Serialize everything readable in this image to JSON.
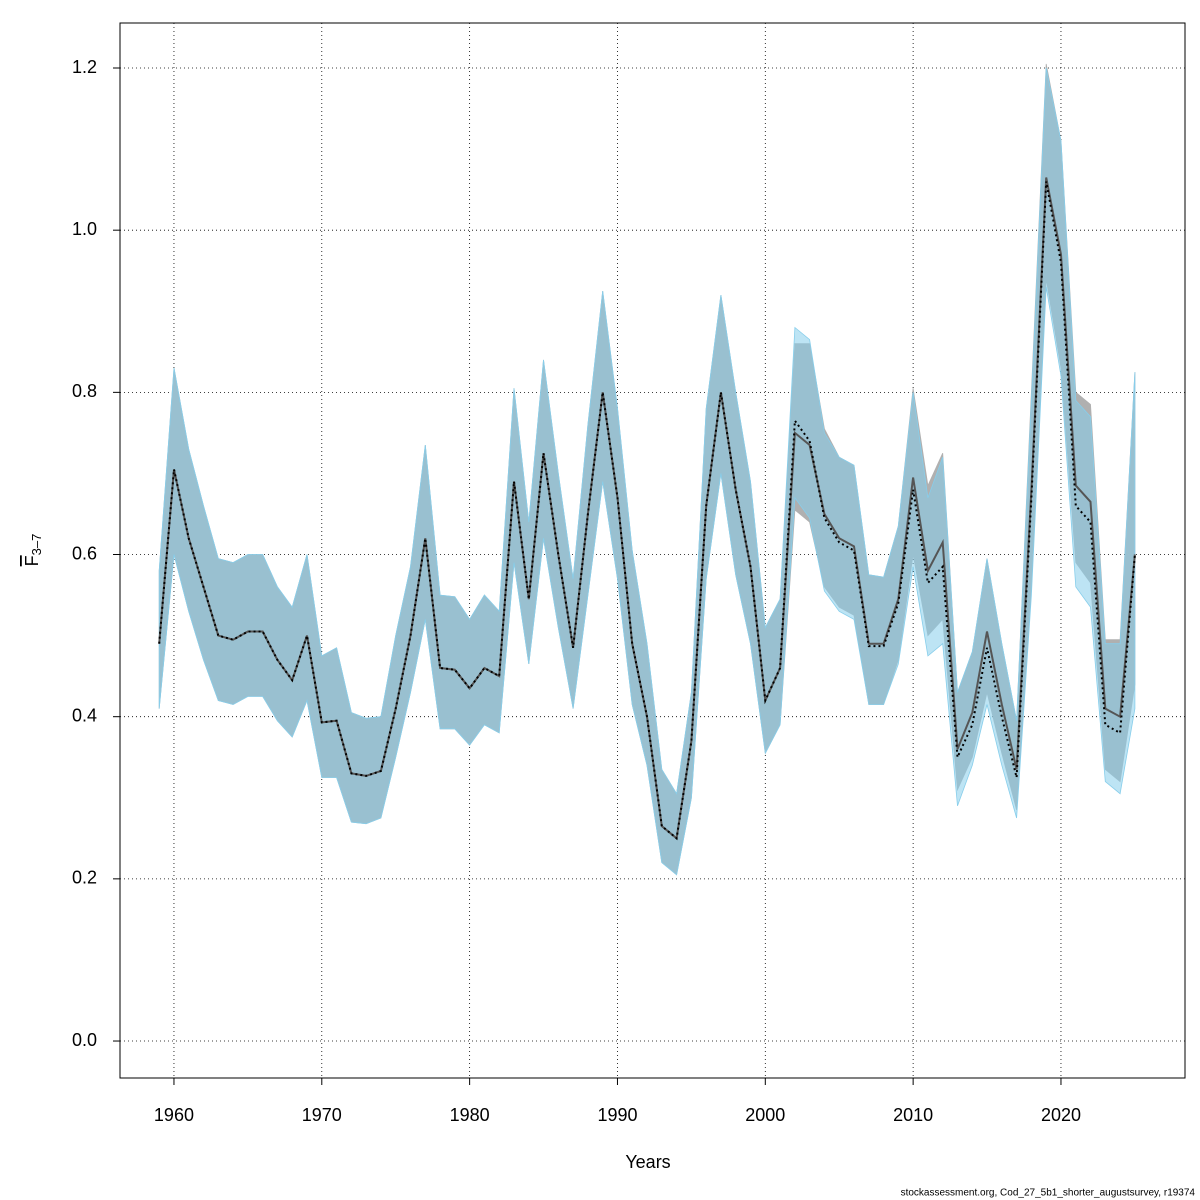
{
  "chart_data": {
    "type": "line",
    "xlabel": "Years",
    "ylabel": {
      "main": "F",
      "subscript": "3–7"
    },
    "footer": "stockassessment.org, Cod_27_5b1_shorter_augustsurvey, r19374",
    "x": [
      1959,
      1960,
      1961,
      1962,
      1963,
      1964,
      1965,
      1966,
      1967,
      1968,
      1969,
      1970,
      1971,
      1972,
      1973,
      1974,
      1975,
      1976,
      1977,
      1978,
      1979,
      1980,
      1981,
      1982,
      1983,
      1984,
      1985,
      1986,
      1987,
      1988,
      1989,
      1990,
      1991,
      1992,
      1993,
      1994,
      1995,
      1996,
      1997,
      1998,
      1999,
      2000,
      2001,
      2002,
      2003,
      2004,
      2005,
      2006,
      2007,
      2008,
      2009,
      2010,
      2011,
      2012,
      2013,
      2014,
      2015,
      2016,
      2017,
      2018,
      2019,
      2020,
      2021,
      2022,
      2023,
      2024,
      2025
    ],
    "series": [
      {
        "color": "#555555",
        "band_color": "#b0b0b0",
        "line_style": "solid",
        "values": [
          0.49,
          0.705,
          0.62,
          0.56,
          0.5,
          0.495,
          0.505,
          0.505,
          0.47,
          0.445,
          0.5,
          0.393,
          0.395,
          0.33,
          0.327,
          0.333,
          0.41,
          0.5,
          0.62,
          0.46,
          0.458,
          0.435,
          0.46,
          0.45,
          0.69,
          0.545,
          0.725,
          0.6,
          0.485,
          0.65,
          0.8,
          0.67,
          0.49,
          0.4,
          0.265,
          0.25,
          0.37,
          0.66,
          0.8,
          0.68,
          0.585,
          0.42,
          0.46,
          0.75,
          0.735,
          0.65,
          0.62,
          0.61,
          0.49,
          0.49,
          0.545,
          0.695,
          0.58,
          0.615,
          0.36,
          0.405,
          0.505,
          0.415,
          0.335,
          0.68,
          1.065,
          0.97,
          0.685,
          0.665,
          0.41,
          0.4,
          0.6
        ],
        "lower": [
          0.41,
          0.6,
          0.53,
          0.47,
          0.42,
          0.415,
          0.425,
          0.425,
          0.395,
          0.375,
          0.42,
          0.325,
          0.325,
          0.27,
          0.268,
          0.275,
          0.35,
          0.43,
          0.52,
          0.385,
          0.385,
          0.365,
          0.39,
          0.38,
          0.59,
          0.465,
          0.62,
          0.51,
          0.41,
          0.55,
          0.69,
          0.57,
          0.415,
          0.34,
          0.22,
          0.205,
          0.3,
          0.57,
          0.7,
          0.575,
          0.49,
          0.355,
          0.39,
          0.655,
          0.64,
          0.56,
          0.535,
          0.525,
          0.415,
          0.415,
          0.47,
          0.6,
          0.5,
          0.52,
          0.31,
          0.35,
          0.43,
          0.355,
          0.285,
          0.56,
          0.94,
          0.83,
          0.59,
          0.565,
          0.335,
          0.32,
          0.44
        ],
        "upper": [
          0.58,
          0.83,
          0.73,
          0.66,
          0.595,
          0.59,
          0.6,
          0.6,
          0.56,
          0.535,
          0.6,
          0.475,
          0.485,
          0.405,
          0.398,
          0.4,
          0.5,
          0.585,
          0.735,
          0.55,
          0.548,
          0.52,
          0.55,
          0.53,
          0.805,
          0.64,
          0.84,
          0.7,
          0.57,
          0.76,
          0.925,
          0.78,
          0.605,
          0.49,
          0.335,
          0.305,
          0.43,
          0.78,
          0.92,
          0.8,
          0.69,
          0.51,
          0.545,
          0.86,
          0.86,
          0.755,
          0.72,
          0.71,
          0.575,
          0.572,
          0.635,
          0.805,
          0.685,
          0.725,
          0.43,
          0.48,
          0.595,
          0.49,
          0.395,
          0.8,
          1.205,
          1.11,
          0.8,
          0.785,
          0.495,
          0.495,
          0.825
        ]
      },
      {
        "color": "#000000",
        "band_color": "#87ceeb",
        "line_style": "dotted",
        "values": [
          0.49,
          0.705,
          0.62,
          0.56,
          0.5,
          0.495,
          0.505,
          0.505,
          0.47,
          0.445,
          0.5,
          0.393,
          0.395,
          0.33,
          0.327,
          0.333,
          0.41,
          0.5,
          0.62,
          0.46,
          0.458,
          0.435,
          0.46,
          0.45,
          0.69,
          0.545,
          0.725,
          0.6,
          0.485,
          0.65,
          0.8,
          0.67,
          0.49,
          0.4,
          0.265,
          0.25,
          0.37,
          0.66,
          0.8,
          0.68,
          0.585,
          0.42,
          0.46,
          0.765,
          0.74,
          0.645,
          0.615,
          0.605,
          0.487,
          0.487,
          0.54,
          0.68,
          0.565,
          0.585,
          0.35,
          0.39,
          0.485,
          0.4,
          0.325,
          0.67,
          1.06,
          0.96,
          0.66,
          0.64,
          0.39,
          0.38,
          0.6
        ],
        "lower": [
          0.41,
          0.6,
          0.53,
          0.47,
          0.42,
          0.415,
          0.425,
          0.425,
          0.395,
          0.375,
          0.42,
          0.325,
          0.325,
          0.27,
          0.268,
          0.275,
          0.35,
          0.43,
          0.52,
          0.385,
          0.385,
          0.365,
          0.39,
          0.38,
          0.59,
          0.465,
          0.62,
          0.51,
          0.41,
          0.55,
          0.69,
          0.57,
          0.415,
          0.34,
          0.22,
          0.205,
          0.3,
          0.57,
          0.7,
          0.575,
          0.49,
          0.355,
          0.39,
          0.67,
          0.645,
          0.555,
          0.53,
          0.52,
          0.415,
          0.415,
          0.465,
          0.585,
          0.475,
          0.49,
          0.29,
          0.34,
          0.415,
          0.34,
          0.275,
          0.55,
          0.93,
          0.82,
          0.56,
          0.535,
          0.32,
          0.305,
          0.41
        ],
        "upper": [
          0.58,
          0.83,
          0.73,
          0.66,
          0.595,
          0.59,
          0.6,
          0.6,
          0.56,
          0.535,
          0.6,
          0.475,
          0.485,
          0.405,
          0.398,
          0.4,
          0.5,
          0.585,
          0.735,
          0.55,
          0.548,
          0.52,
          0.55,
          0.53,
          0.805,
          0.64,
          0.84,
          0.7,
          0.57,
          0.76,
          0.925,
          0.78,
          0.605,
          0.49,
          0.335,
          0.305,
          0.43,
          0.78,
          0.92,
          0.8,
          0.69,
          0.51,
          0.545,
          0.88,
          0.865,
          0.75,
          0.72,
          0.71,
          0.575,
          0.572,
          0.635,
          0.8,
          0.67,
          0.72,
          0.43,
          0.48,
          0.595,
          0.49,
          0.395,
          0.79,
          1.2,
          1.11,
          0.79,
          0.77,
          0.49,
          0.49,
          0.825
        ]
      }
    ],
    "xlim": [
      1956.35,
      2028.39
    ],
    "xticks": [
      1960,
      1970,
      1980,
      1990,
      2000,
      2010,
      2020
    ],
    "ylim": [
      -0.0456,
      1.2555
    ],
    "yticks": [
      {
        "value": 0,
        "label": "0.0"
      },
      0.2,
      0.4,
      0.6,
      0.8,
      {
        "value": 1,
        "label": "1.0"
      },
      1.2
    ],
    "grid": true
  }
}
